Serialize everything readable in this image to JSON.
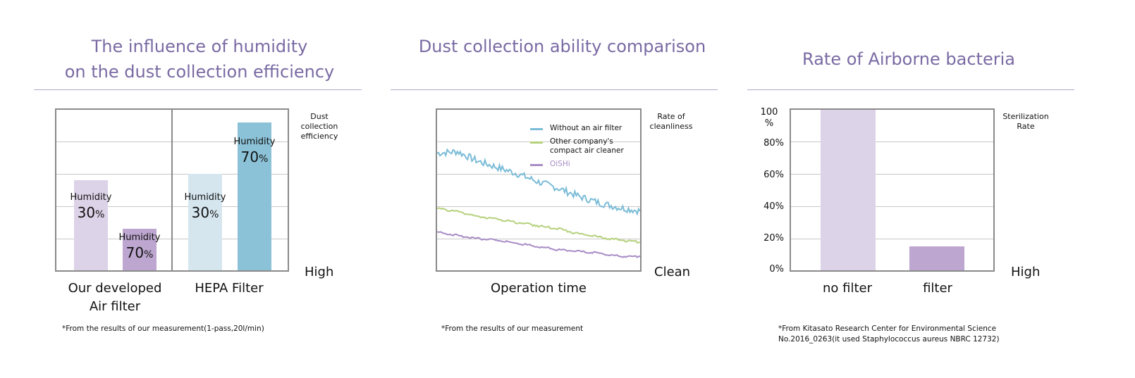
{
  "colors": {
    "title": "#7a6aa3",
    "rule": "#b3a9cf",
    "frame": "#8a8a8a",
    "grid": "#c8c8c8",
    "light_purple": "#ddd3e8",
    "mid_purple": "#bda6cf",
    "light_blue": "#d5e6ef",
    "mid_blue": "#8bc2d7",
    "line_blue": "#7bbcd7",
    "line_green": "#b5d17c",
    "line_purple": "#a88cc6"
  },
  "panel1": {
    "title_line1": "The influence of humidity",
    "title_line2": "on the dust collection efficiency",
    "side_note": [
      "Dust",
      "collection",
      "efficiency"
    ],
    "high_label": "High",
    "group1_label_line1": "Our developed",
    "group1_label_line2": "Air filter",
    "group2_label": "HEPA Filter",
    "bars": [
      {
        "word": "Humidity",
        "num": "30",
        "unit": "%"
      },
      {
        "word": "Humidity",
        "num": "70",
        "unit": "%"
      },
      {
        "word": "Humidity",
        "num": "30",
        "unit": "%"
      },
      {
        "word": "Humidity",
        "num": "70",
        "unit": "%"
      }
    ],
    "footnote": "*From the results of our measurement(1-pass,20l/min)"
  },
  "panel2": {
    "title": "Dust collection ability comparison",
    "side_note": [
      "Rate of",
      "cleanliness"
    ],
    "high_label": "Clean",
    "x_label": "Operation time",
    "legend": [
      "Without an air filter",
      "Other company's\ncompact air cleaner",
      "OiSHi"
    ],
    "footnote": "*From the results of our measurement"
  },
  "panel3": {
    "title": "Rate of Airborne bacteria",
    "side_note": [
      "Sterilization",
      "Rate"
    ],
    "high_label": "High",
    "y_ticks": [
      "100\n%",
      "80%",
      "60%",
      "40%",
      "20%",
      "0%"
    ],
    "cat1": "no filter",
    "cat2": "filter",
    "footnote_line1": "*From Kitasato Research Center for Environmental Science",
    "footnote_line2": "No.2016_0263(it used Staphylococcus aureus NBRC 12732)"
  },
  "chart_data": [
    {
      "type": "bar",
      "title": "The influence of humidity on the dust collection efficiency",
      "ylabel": "Dust collection efficiency",
      "categories": [
        "Our developed Air filter",
        "HEPA Filter"
      ],
      "series": [
        {
          "name": "Humidity 30%",
          "values": [
            56,
            60
          ]
        },
        {
          "name": "Humidity 70%",
          "values": [
            26,
            92
          ]
        }
      ],
      "ylim": [
        0,
        100
      ],
      "grid": true
    },
    {
      "type": "line",
      "title": "Dust collection ability comparison",
      "xlabel": "Operation time",
      "ylabel": "Rate of cleanliness",
      "x": [
        0,
        10,
        20,
        30,
        40,
        50,
        60,
        70,
        80,
        90,
        100
      ],
      "series": [
        {
          "name": "Without an air filter",
          "values": [
            73,
            74,
            68,
            64,
            60,
            55,
            51,
            46,
            42,
            39,
            37
          ]
        },
        {
          "name": "Other company's compact air cleaner",
          "values": [
            39,
            37,
            34,
            32,
            30,
            28,
            26,
            23,
            21,
            19,
            18
          ]
        },
        {
          "name": "OiSHi",
          "values": [
            24,
            22,
            20,
            19,
            17,
            15,
            13,
            12,
            11,
            9,
            9
          ]
        }
      ],
      "ylim": [
        0,
        100
      ],
      "legend": "top-right",
      "grid": true
    },
    {
      "type": "bar",
      "title": "Rate of Airborne bacteria",
      "ylabel": "Sterilization Rate",
      "categories": [
        "no filter",
        "filter"
      ],
      "values": [
        100,
        15
      ],
      "ylim": [
        0,
        100
      ],
      "grid": true
    }
  ]
}
